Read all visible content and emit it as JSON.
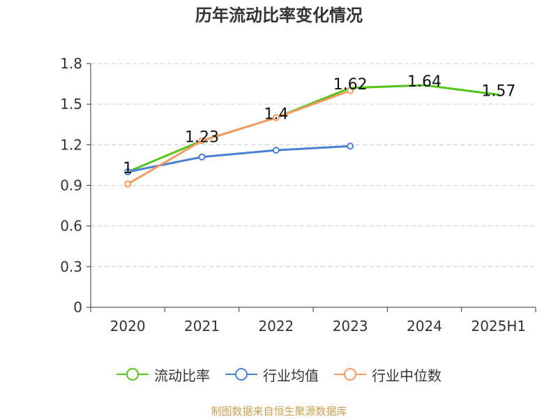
{
  "title": "历年流动比率变化情况",
  "source_note": "制图数据来自恒生聚源数据库",
  "colors": {
    "current_ratio": "#52c41a",
    "industry_mean": "#4a7fd4",
    "industry_median": "#f59a62",
    "grid": "#cccccc",
    "axis": "#333333",
    "text": "#333333"
  },
  "chart_data": {
    "type": "line",
    "categories": [
      "2020",
      "2021",
      "2022",
      "2023",
      "2024",
      "2025H1"
    ],
    "ylim": [
      0,
      1.8
    ],
    "yticks": [
      "0",
      "0.3",
      "0.6",
      "0.9",
      "1.2",
      "1.5",
      "1.8"
    ],
    "grid": true,
    "legend_position": "bottom",
    "series": [
      {
        "name": "流动比率",
        "values": [
          1.0,
          1.23,
          1.4,
          1.62,
          1.64,
          1.57
        ],
        "data_labels": [
          "1",
          "1.23",
          "1.4",
          "1.62",
          "1.64",
          "1.57"
        ],
        "markers": false
      },
      {
        "name": "行业均值",
        "values": [
          1.0,
          1.11,
          1.16,
          1.19,
          null,
          null
        ],
        "data_labels": [],
        "markers": true
      },
      {
        "name": "行业中位数",
        "values": [
          0.91,
          1.23,
          1.4,
          1.6,
          null,
          null
        ],
        "data_labels": [],
        "markers": true
      }
    ]
  }
}
